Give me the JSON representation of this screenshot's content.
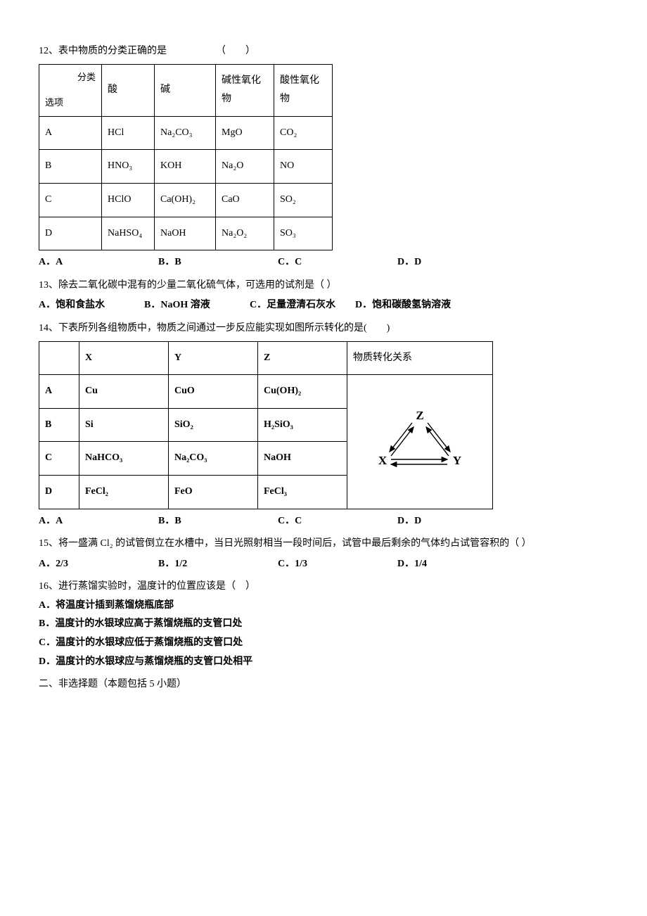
{
  "q12": {
    "prompt": "12、表中物质的分类正确的是     （  ）",
    "headers": {
      "diag_top": "分类",
      "diag_bottom": "选项",
      "c1": "酸",
      "c2": "碱",
      "c3": "碱性氧化物",
      "c4": "酸性氧化物"
    },
    "rows": [
      {
        "label": "A",
        "acid": "HCl",
        "base": "Na₂CO₃",
        "basic_oxide": "MgO",
        "acidic_oxide": "CO₂"
      },
      {
        "label": "B",
        "acid": "HNO₃",
        "base": "KOH",
        "basic_oxide": "Na₂O",
        "acidic_oxide": "NO"
      },
      {
        "label": "C",
        "acid": "HClO",
        "base": "Ca(OH)₂",
        "basic_oxide": "CaO",
        "acidic_oxide": "SO₂"
      },
      {
        "label": "D",
        "acid": "NaHSO₄",
        "base": "NaOH",
        "basic_oxide": "Na₂O₂",
        "acidic_oxide": "SO₃"
      }
    ],
    "options": {
      "a": "A．A",
      "b": "B．B",
      "c": "C．C",
      "d": "D．D"
    },
    "col_widths": [
      "88px",
      "58px",
      "70px",
      "66px",
      "66px"
    ]
  },
  "q13": {
    "prompt": "13、除去二氧化碳中混有的少量二氧化硫气体，可选用的试剂是（ ）",
    "options": {
      "a": "A．饱和食盐水",
      "b": "B．NaOH 溶液",
      "c": "C．足量澄清石灰水",
      "d": "D．饱和碳酸氢钠溶液"
    }
  },
  "q14": {
    "prompt": "14、下表所列各组物质中，物质之间通过一步反应能实现如图所示转化的是(  )",
    "headers": {
      "x": "X",
      "y": "Y",
      "z": "Z",
      "rel": "物质转化关系"
    },
    "rows": [
      {
        "label": "A",
        "x": "Cu",
        "y": "CuO",
        "z": "Cu(OH)₂"
      },
      {
        "label": "B",
        "x": "Si",
        "y": "SiO₂",
        "z": "H₂SiO₃"
      },
      {
        "label": "C",
        "x": "NaHCO₃",
        "y": "Na₂CO₃",
        "z": "NaOH"
      },
      {
        "label": "D",
        "x": "FeCl₂",
        "y": "FeO",
        "z": "FeCl₃"
      }
    ],
    "options": {
      "a": "A．A",
      "b": "B．B",
      "c": "C．C",
      "d": "D．D"
    },
    "diagram": {
      "labels": {
        "z": "Z",
        "x": "X",
        "y": "Y"
      },
      "width": 170,
      "height": 110,
      "node_font_size": 17,
      "stroke": "#000"
    },
    "col_widths": [
      "40px",
      "110px",
      "110px",
      "110px",
      "190px"
    ]
  },
  "q15": {
    "prompt": "15、将一盛满 Cl₂ 的试管倒立在水槽中，当日光照射相当一段时间后，试管中最后剩余的气体约占试管容积的（ ）",
    "options": {
      "a": "A．2/3",
      "b": "B．1/2",
      "c": "C．1/3",
      "d": "D．1/4"
    }
  },
  "q16": {
    "prompt": "16、进行蒸馏实验时，温度计的位置应该是（ ）",
    "options": {
      "a": "A．将温度计插到蒸馏烧瓶底部",
      "b": "B．温度计的水银球应高于蒸馏烧瓶的支管口处",
      "c": "C．温度计的水银球应低于蒸馏烧瓶的支管口处",
      "d": "D．温度计的水银球应与蒸馏烧瓶的支管口处相平"
    }
  },
  "section2": "二、非选择题（本题包括 5 小题）"
}
